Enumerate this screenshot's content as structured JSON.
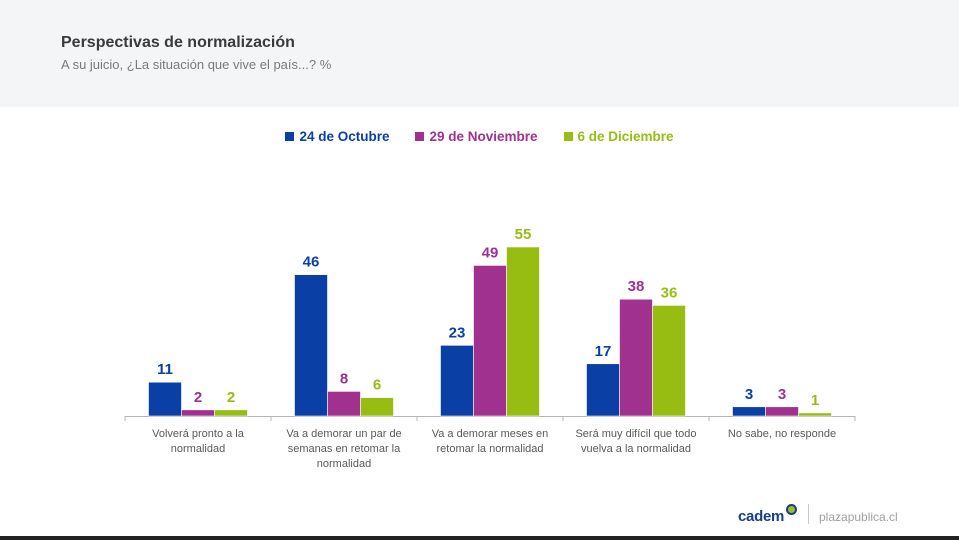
{
  "header": {
    "title": "Perspectivas de normalización",
    "subtitle": "A su juicio, ¿La situación que vive el país...? %"
  },
  "footer": {
    "logo_text": "cadem",
    "site": "plazapublica.cl"
  },
  "chart_data": {
    "type": "bar",
    "title": "Perspectivas de normalización",
    "subtitle": "A su juicio, ¿La situación que vive el país...? %",
    "xlabel": "",
    "ylabel": "",
    "ylim": [
      0,
      55
    ],
    "grid": false,
    "legend_position": "top-center",
    "categories": [
      "Volverá pronto a la normalidad",
      "Va a demorar un par de semanas en retomar la normalidad",
      "Va a demorar meses en retomar la normalidad",
      "Será muy difícil que todo vuelva a la normalidad",
      "No sabe, no responde"
    ],
    "category_lines": [
      [
        "Volverá pronto a la",
        "normalidad"
      ],
      [
        "Va a demorar un par de",
        "semanas en retomar la",
        "normalidad"
      ],
      [
        "Va a demorar meses en",
        "retomar la normalidad"
      ],
      [
        "Será muy difícil que todo",
        "vuelva a la normalidad"
      ],
      [
        "No sabe, no responde"
      ]
    ],
    "series": [
      {
        "name": "24 de Octubre",
        "color": "#0a3fa6",
        "values": [
          11,
          46,
          23,
          17,
          3
        ]
      },
      {
        "name": "29 de Noviembre",
        "color": "#a0318f",
        "values": [
          2,
          8,
          49,
          38,
          3
        ]
      },
      {
        "name": "6 de Diciembre",
        "color": "#97bd13",
        "values": [
          2,
          6,
          55,
          36,
          1
        ]
      }
    ]
  }
}
